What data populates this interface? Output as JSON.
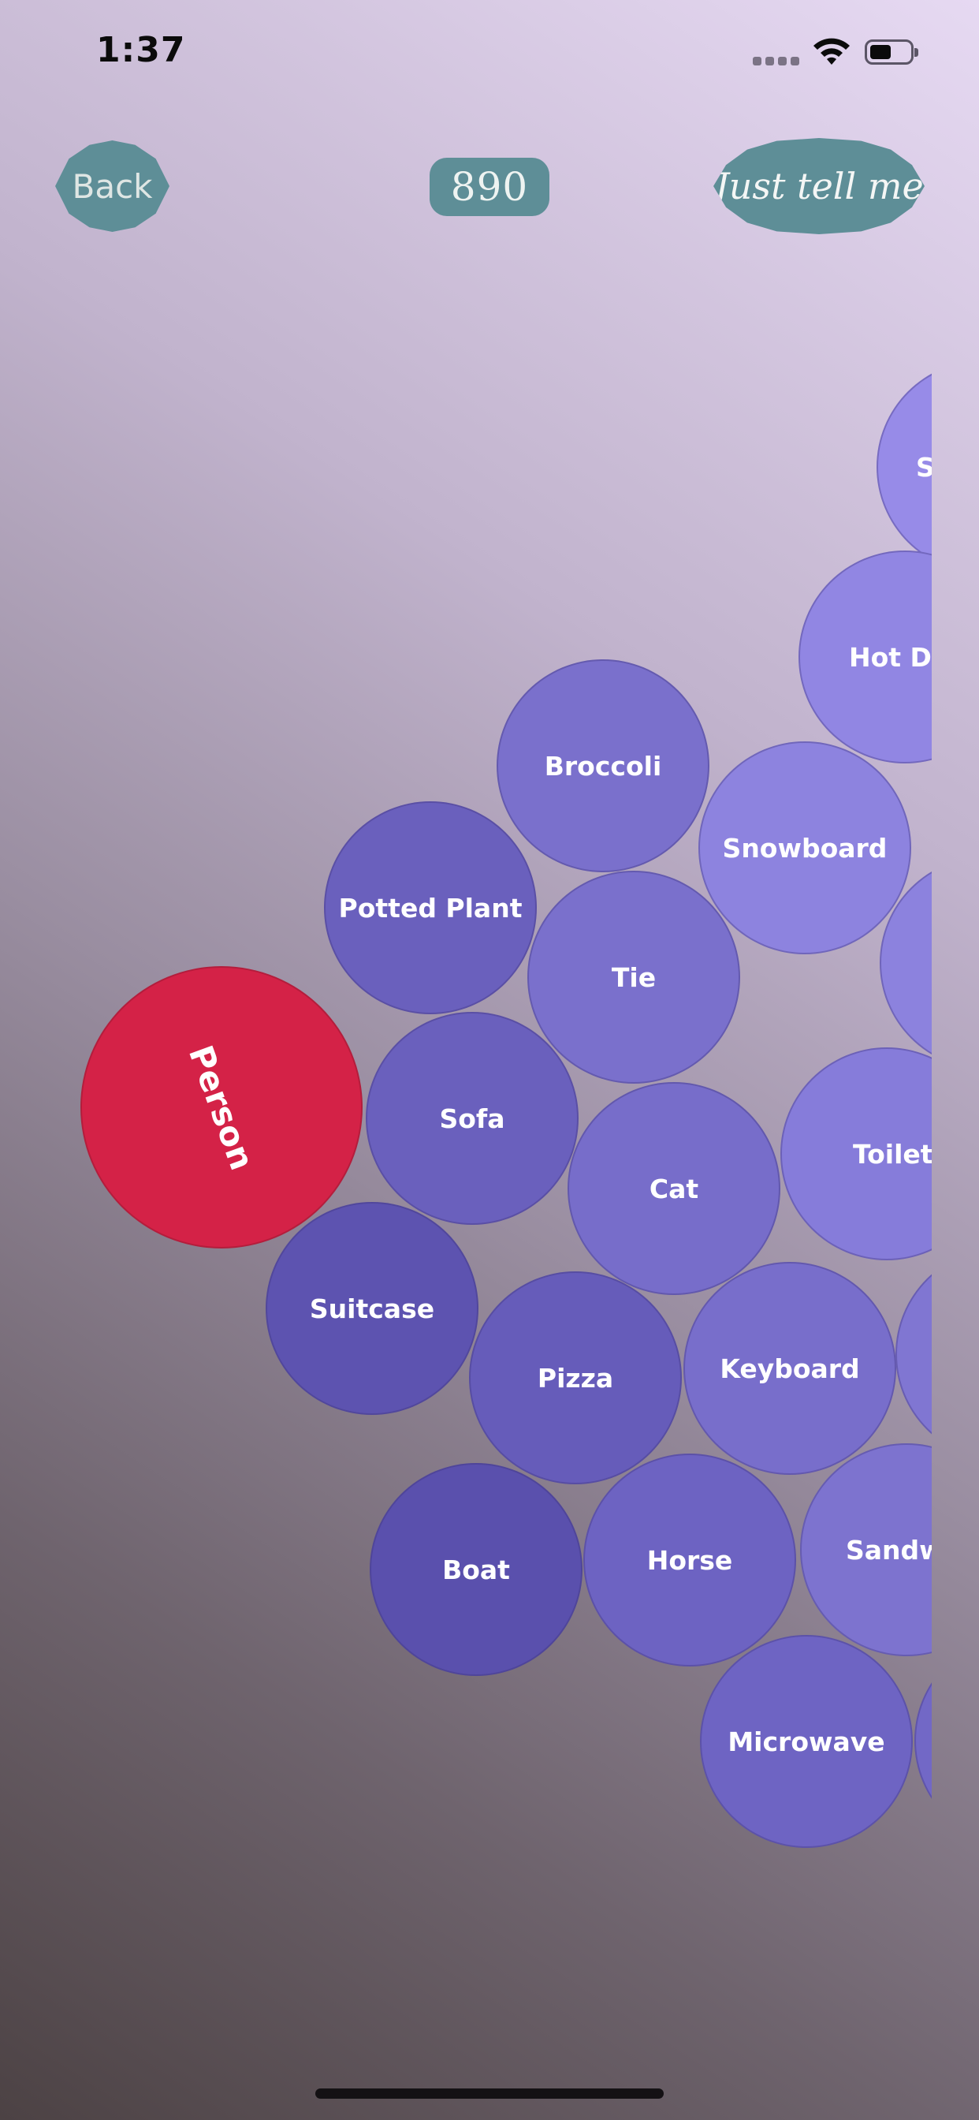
{
  "status_bar": {
    "time": "1:37",
    "icons": [
      "cellular-signal-icon",
      "wifi-icon",
      "battery-icon"
    ]
  },
  "nav": {
    "back_label": "Back",
    "score": "890",
    "tell_label": "Just tell me"
  },
  "colors": {
    "button": "#5e8e97",
    "selected_bubble": "#d42247",
    "bubble_dark": "#5a4fa8",
    "bubble_light": "#9a8de8"
  },
  "selected": {
    "label": "Person"
  },
  "bubbles": [
    {
      "label": "Spoon"
    },
    {
      "label": "Hot Dog"
    },
    {
      "label": "Broccoli"
    },
    {
      "label": "Snowboard"
    },
    {
      "label": "Potted Plant"
    },
    {
      "label": "Tie"
    },
    {
      "label": ""
    },
    {
      "label": "Sofa"
    },
    {
      "label": "Cat"
    },
    {
      "label": "Toilet"
    },
    {
      "label": "Suitcase"
    },
    {
      "label": "Pizza"
    },
    {
      "label": "Keyboard"
    },
    {
      "label": ""
    },
    {
      "label": "Boat"
    },
    {
      "label": "Horse"
    },
    {
      "label": "Sandwich"
    },
    {
      "label": "Microwave"
    },
    {
      "label": ""
    }
  ]
}
